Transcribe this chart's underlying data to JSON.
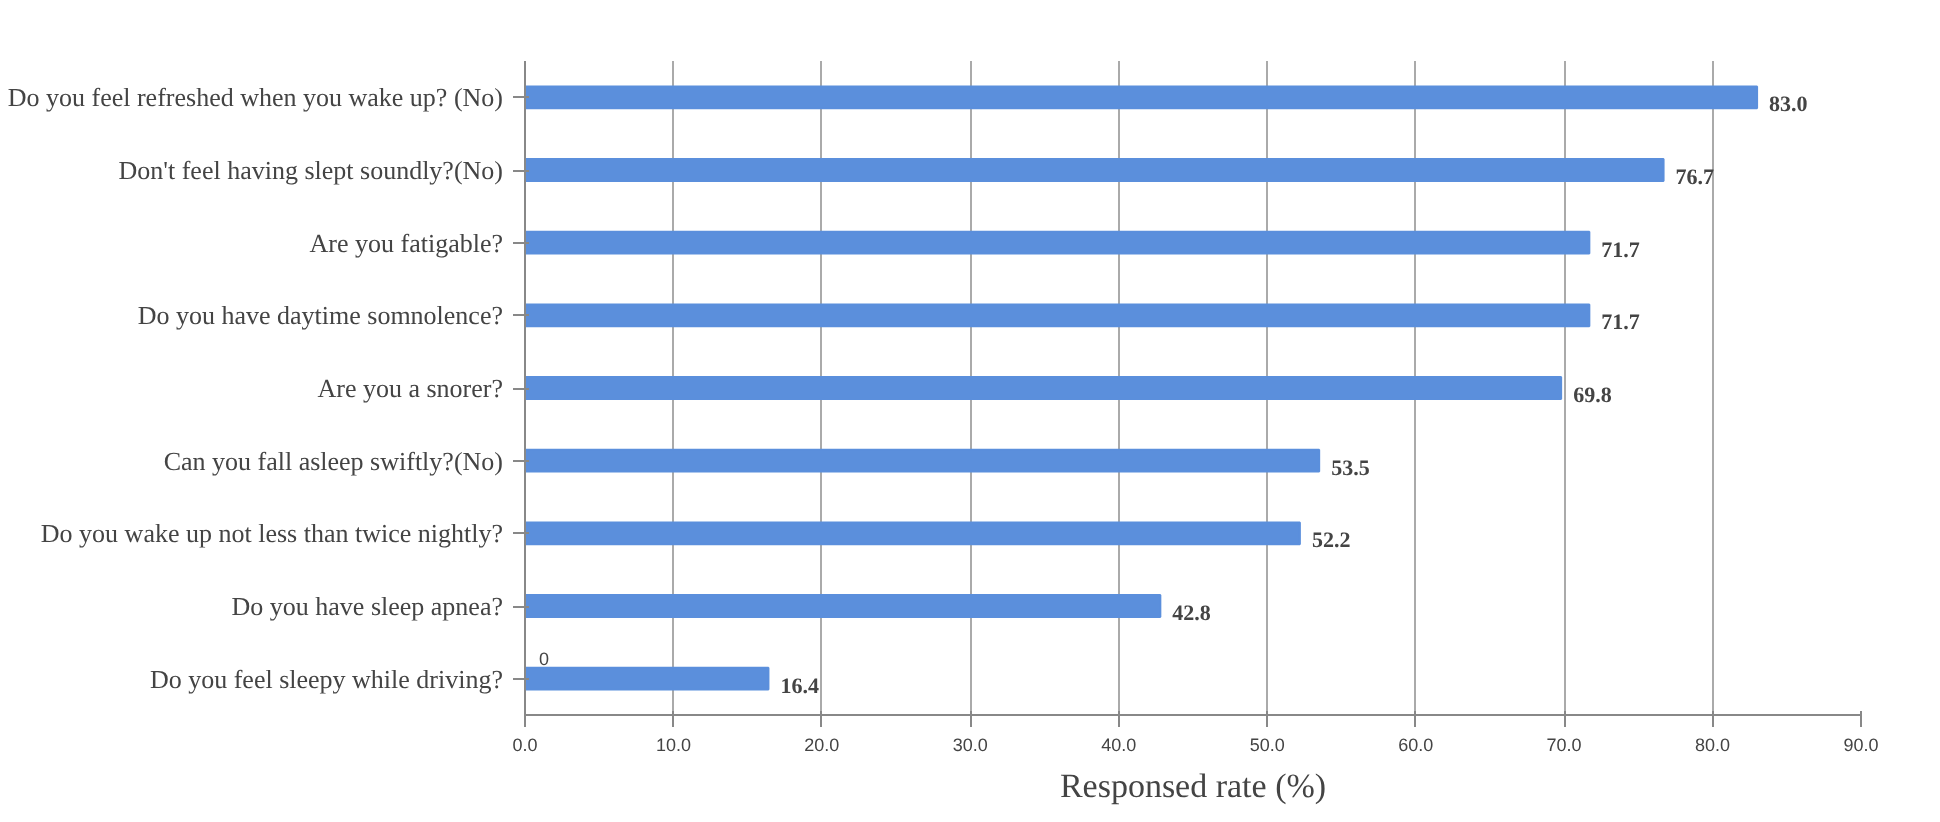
{
  "chart_data": {
    "type": "bar",
    "orientation": "horizontal",
    "xlabel": "Responsed rate (%)",
    "categories": [
      "Do you feel refreshed when you wake up? (No)",
      "Don't feel having slept soundly?(No)",
      "Are you fatigable?",
      "Do you have daytime somnolence?",
      "Are you a snorer?",
      "Can you fall asleep swiftly?(No)",
      "Do you wake up not less than twice nightly?",
      "Do you have sleep apnea?",
      "Do you feel sleepy while driving?"
    ],
    "values": [
      83.0,
      76.7,
      71.7,
      71.7,
      69.8,
      53.5,
      52.2,
      42.8,
      16.4
    ],
    "value_labels": [
      "83.0",
      "76.7",
      "71.7",
      "71.7",
      "69.8",
      "53.5",
      "52.2",
      "42.8",
      "16.4"
    ],
    "color": "#5b8fdc",
    "xlim": [
      0,
      90
    ],
    "xticks": [
      {
        "value": 0,
        "label": "0.0"
      },
      {
        "value": 10,
        "label": "10.0"
      },
      {
        "value": 20,
        "label": "20.0"
      },
      {
        "value": 30,
        "label": "30.0"
      },
      {
        "value": 40,
        "label": "40.0"
      },
      {
        "value": 50,
        "label": "50.0"
      },
      {
        "value": 60,
        "label": "60.0"
      },
      {
        "value": 70,
        "label": "70.0"
      },
      {
        "value": 80,
        "label": "80.0"
      },
      {
        "value": 90,
        "label": "90.0"
      }
    ],
    "grid": "x",
    "annotations": [
      {
        "text": "0",
        "x": 0,
        "y": "Do you feel sleepy while driving?"
      }
    ]
  }
}
